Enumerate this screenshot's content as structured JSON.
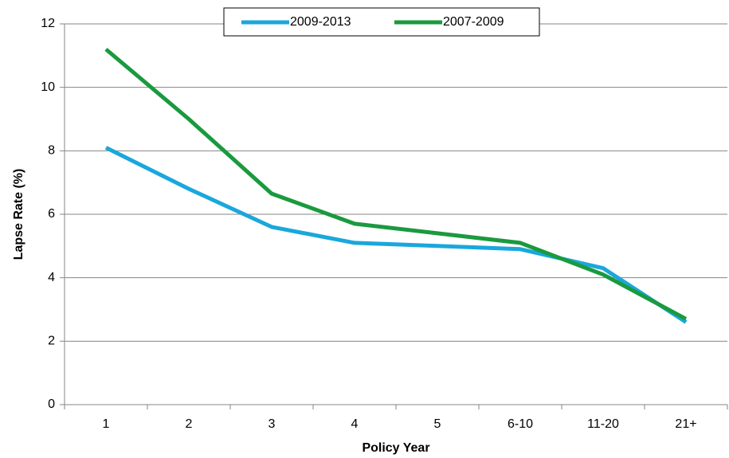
{
  "chart_data": {
    "type": "line",
    "title": "",
    "xlabel": "Policy Year",
    "ylabel": "Lapse Rate (%)",
    "categories": [
      "1",
      "2",
      "3",
      "4",
      "5",
      "6-10",
      "11-20",
      "21+"
    ],
    "ylim": [
      0,
      12
    ],
    "yticks": [
      "0",
      "2",
      "4",
      "6",
      "8",
      "10",
      "12"
    ],
    "grid": true,
    "legend_position": "top",
    "series": [
      {
        "name": "2009-2013",
        "color": "#1aa7dc",
        "values": [
          8.1,
          6.8,
          5.6,
          5.1,
          5.0,
          4.9,
          4.3,
          2.6
        ]
      },
      {
        "name": "2007-2009",
        "color": "#1a9a3e",
        "values": [
          11.2,
          9.0,
          6.65,
          5.7,
          5.4,
          5.1,
          4.1,
          2.7
        ]
      }
    ]
  }
}
